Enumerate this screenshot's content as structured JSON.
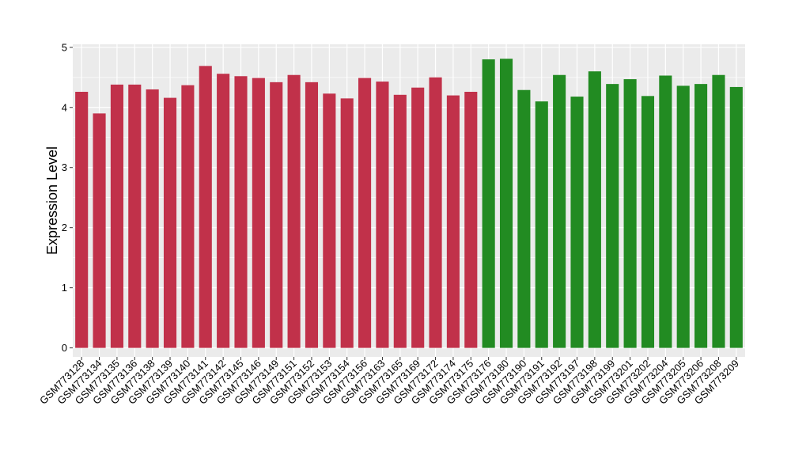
{
  "chart_data": {
    "type": "bar",
    "title": "",
    "xlabel": "",
    "ylabel": "Expression Level",
    "ylim": [
      -0.15,
      5.05
    ],
    "yticks": [
      0,
      1,
      2,
      3,
      4,
      5
    ],
    "grid": true,
    "legend": "none",
    "colors": {
      "group_a": "#c1314a",
      "group_b": "#228b22",
      "panel": "#ebebeb",
      "grid": "#ffffff"
    },
    "categories": [
      "GSM773128",
      "GSM773134",
      "GSM773135",
      "GSM773136",
      "GSM773138",
      "GSM773139",
      "GSM773140",
      "GSM773141",
      "GSM773142",
      "GSM773145",
      "GSM773146",
      "GSM773149",
      "GSM773151",
      "GSM773152",
      "GSM773153",
      "GSM773154",
      "GSM773156",
      "GSM773163",
      "GSM773165",
      "GSM773169",
      "GSM773172",
      "GSM773174",
      "GSM773175",
      "GSM773176",
      "GSM773180",
      "GSM773190",
      "GSM773191",
      "GSM773192",
      "GSM773197",
      "GSM773198",
      "GSM773199",
      "GSM773201",
      "GSM773202",
      "GSM773204",
      "GSM773205",
      "GSM773206",
      "GSM773208",
      "GSM773209"
    ],
    "values": [
      4.26,
      3.9,
      4.38,
      4.38,
      4.3,
      4.16,
      4.37,
      4.69,
      4.56,
      4.52,
      4.49,
      4.42,
      4.54,
      4.42,
      4.23,
      4.15,
      4.49,
      4.43,
      4.21,
      4.33,
      4.5,
      4.2,
      4.26,
      4.8,
      4.81,
      4.29,
      4.1,
      4.54,
      4.18,
      4.6,
      4.39,
      4.47,
      4.19,
      4.53,
      4.36,
      4.39,
      4.54,
      4.34
    ],
    "groups": [
      "a",
      "a",
      "a",
      "a",
      "a",
      "a",
      "a",
      "a",
      "a",
      "a",
      "a",
      "a",
      "a",
      "a",
      "a",
      "a",
      "a",
      "a",
      "a",
      "a",
      "a",
      "a",
      "a",
      "b",
      "b",
      "b",
      "b",
      "b",
      "b",
      "b",
      "b",
      "b",
      "b",
      "b",
      "b",
      "b",
      "b",
      "b"
    ]
  }
}
